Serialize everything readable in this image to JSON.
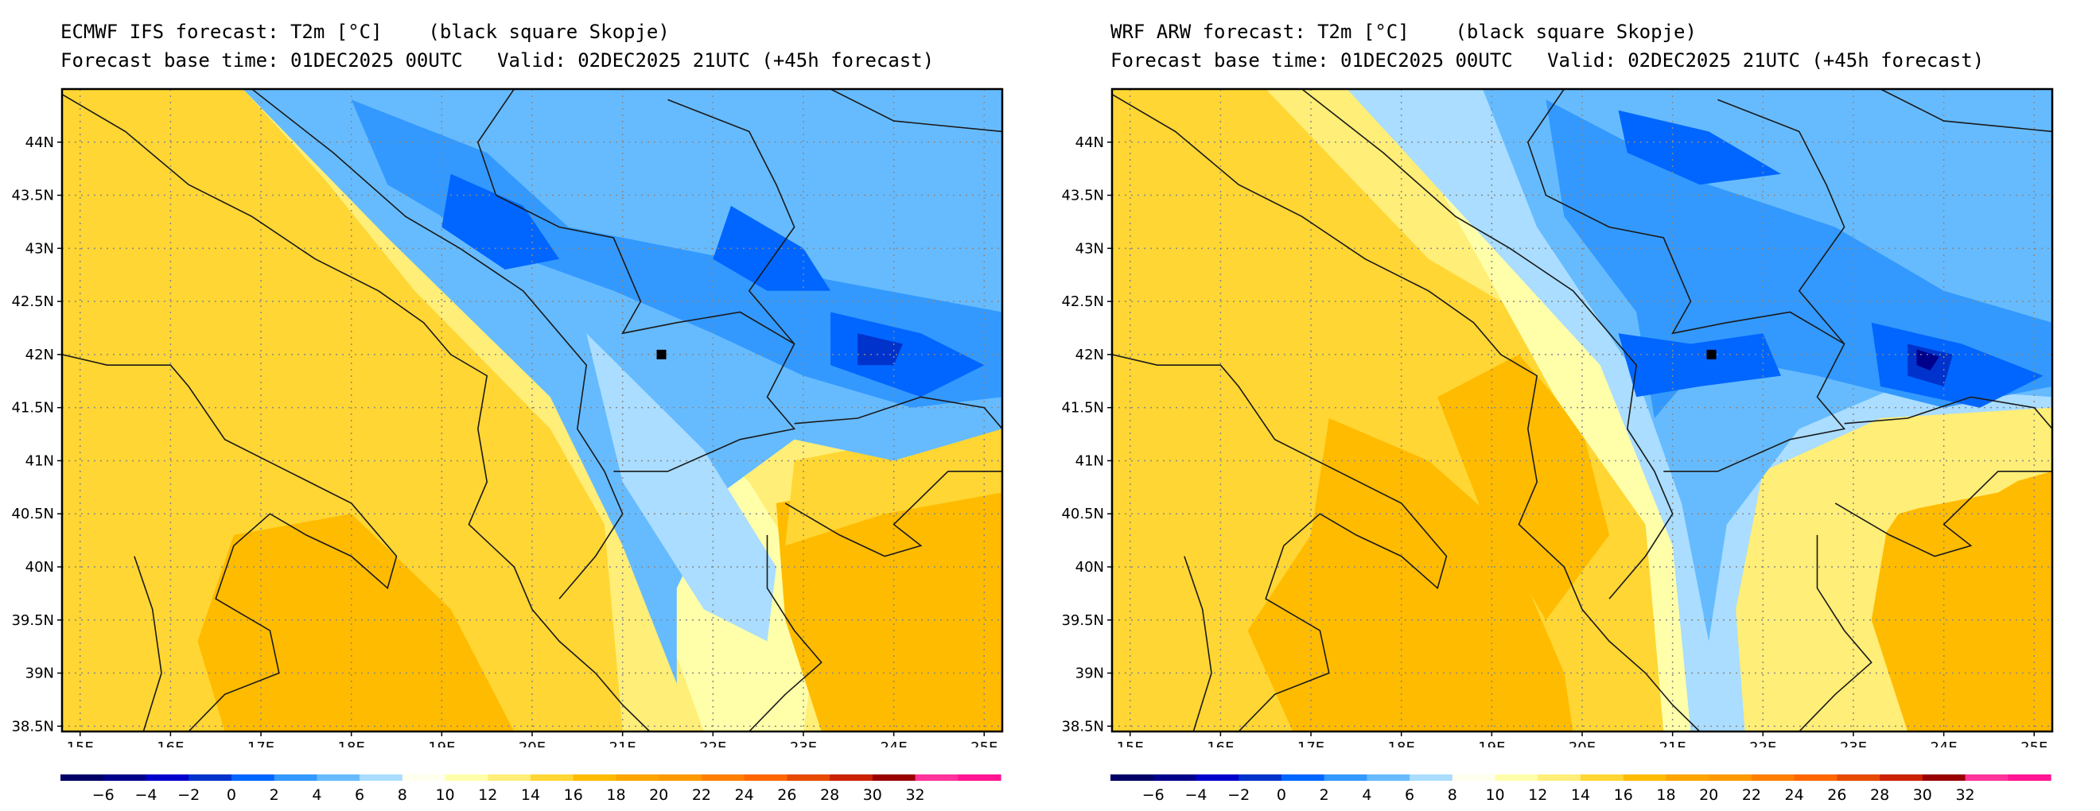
{
  "panels": [
    {
      "id": "ecmwf",
      "title_line1": "ECMWF IFS forecast: T2m [°C]    (black square Skopje)",
      "title_line2": "Forecast base time: 01DEC2025 00UTC   Valid: 02DEC2025 21UTC (+45h forecast)",
      "model": "ecmwf"
    },
    {
      "id": "wrf",
      "title_line1": "WRF ARW forecast: T2m [°C]    (black square Skopje)",
      "title_line2": "Forecast base time: 01DEC2025 00UTC   Valid: 02DEC2025 21UTC (+45h forecast)",
      "model": "wrf"
    }
  ],
  "map_extent": {
    "lon_min": 14.8,
    "lon_max": 25.2,
    "lat_min": 38.45,
    "lat_max": 44.5
  },
  "lon_ticks": [
    "15E",
    "16E",
    "17E",
    "18E",
    "19E",
    "20E",
    "21E",
    "22E",
    "23E",
    "24E",
    "25E"
  ],
  "lon_values": [
    15,
    16,
    17,
    18,
    19,
    20,
    21,
    22,
    23,
    24,
    25
  ],
  "lat_ticks": [
    "38.5N",
    "39N",
    "39.5N",
    "40N",
    "40.5N",
    "41N",
    "41.5N",
    "42N",
    "42.5N",
    "43N",
    "43.5N",
    "44N"
  ],
  "lat_values": [
    38.5,
    39,
    39.5,
    40,
    40.5,
    41,
    41.5,
    42,
    42.5,
    43,
    43.5,
    44
  ],
  "marker": {
    "name": "Skopje",
    "lon": 21.43,
    "lat": 42.0
  },
  "colorbar": {
    "labels": [
      "−6",
      "−4",
      "−2",
      "0",
      "2",
      "4",
      "6",
      "8",
      "10",
      "12",
      "14",
      "16",
      "18",
      "20",
      "22",
      "24",
      "26",
      "28",
      "30",
      "32"
    ],
    "colors": [
      "#000066",
      "#00008b",
      "#0000cd",
      "#0033cc",
      "#0066ff",
      "#3399ff",
      "#66bbff",
      "#aaddff",
      "#ffffee",
      "#ffffaa",
      "#ffee77",
      "#ffd633",
      "#ffbb00",
      "#ffa500",
      "#ff9900",
      "#ff7f00",
      "#ff6600",
      "#e64a00",
      "#cc2200",
      "#990000",
      "#ff3399",
      "#ff1493"
    ]
  }
}
